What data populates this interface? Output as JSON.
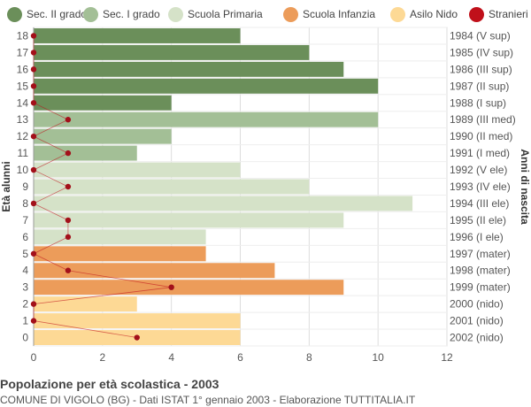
{
  "chart_data": {
    "type": "bar",
    "orientation": "horizontal",
    "title": "Popolazione per età scolastica - 2003",
    "subtitle": "COMUNE DI VIGOLO (BG) - Dati ISTAT 1° gennaio 2003 - Elaborazione TUTTITALIA.IT",
    "ylabel_left": "Età alunni",
    "ylabel_right": "Anni di nascita",
    "xlim": [
      0,
      12
    ],
    "x_ticks": [
      0,
      2,
      4,
      6,
      8,
      10,
      12
    ],
    "grid": true,
    "legend_position": "top",
    "legend": [
      {
        "name": "Sec. II grado",
        "color": "#6b8f5a"
      },
      {
        "name": "Sec. I grado",
        "color": "#a3bf96"
      },
      {
        "name": "Scuola Primaria",
        "color": "#d5e2c8"
      },
      {
        "name": "Scuola Infanzia",
        "color": "#ec9c5a"
      },
      {
        "name": "Asilo Nido",
        "color": "#fdd995"
      },
      {
        "name": "Stranieri",
        "color": "#c0101a"
      }
    ],
    "rows": [
      {
        "age": "18",
        "birth": "1984 (V sup)",
        "value": 6,
        "stranieri": 0,
        "group": 0
      },
      {
        "age": "17",
        "birth": "1985 (IV sup)",
        "value": 8,
        "stranieri": 0,
        "group": 0
      },
      {
        "age": "16",
        "birth": "1986 (III sup)",
        "value": 9,
        "stranieri": 0,
        "group": 0
      },
      {
        "age": "15",
        "birth": "1987 (II sup)",
        "value": 10,
        "stranieri": 0,
        "group": 0
      },
      {
        "age": "14",
        "birth": "1988 (I sup)",
        "value": 4,
        "stranieri": 0,
        "group": 0
      },
      {
        "age": "13",
        "birth": "1989 (III med)",
        "value": 10,
        "stranieri": 1,
        "group": 1
      },
      {
        "age": "12",
        "birth": "1990 (II med)",
        "value": 4,
        "stranieri": 0,
        "group": 1
      },
      {
        "age": "11",
        "birth": "1991 (I med)",
        "value": 3,
        "stranieri": 1,
        "group": 1
      },
      {
        "age": "10",
        "birth": "1992 (V ele)",
        "value": 6,
        "stranieri": 0,
        "group": 2
      },
      {
        "age": "9",
        "birth": "1993 (IV ele)",
        "value": 8,
        "stranieri": 1,
        "group": 2
      },
      {
        "age": "8",
        "birth": "1994 (III ele)",
        "value": 11,
        "stranieri": 0,
        "group": 2
      },
      {
        "age": "7",
        "birth": "1995 (II ele)",
        "value": 9,
        "stranieri": 1,
        "group": 2
      },
      {
        "age": "6",
        "birth": "1996 (I ele)",
        "value": 5,
        "stranieri": 1,
        "group": 2
      },
      {
        "age": "5",
        "birth": "1997 (mater)",
        "value": 5,
        "stranieri": 0,
        "group": 3
      },
      {
        "age": "4",
        "birth": "1998 (mater)",
        "value": 7,
        "stranieri": 1,
        "group": 3
      },
      {
        "age": "3",
        "birth": "1999 (mater)",
        "value": 9,
        "stranieri": 4,
        "group": 3
      },
      {
        "age": "2",
        "birth": "2000 (nido)",
        "value": 3,
        "stranieri": 0,
        "group": 4
      },
      {
        "age": "1",
        "birth": "2001 (nido)",
        "value": 6,
        "stranieri": 0,
        "group": 4
      },
      {
        "age": "0",
        "birth": "2002 (nido)",
        "value": 6,
        "stranieri": 3,
        "group": 4
      }
    ]
  }
}
